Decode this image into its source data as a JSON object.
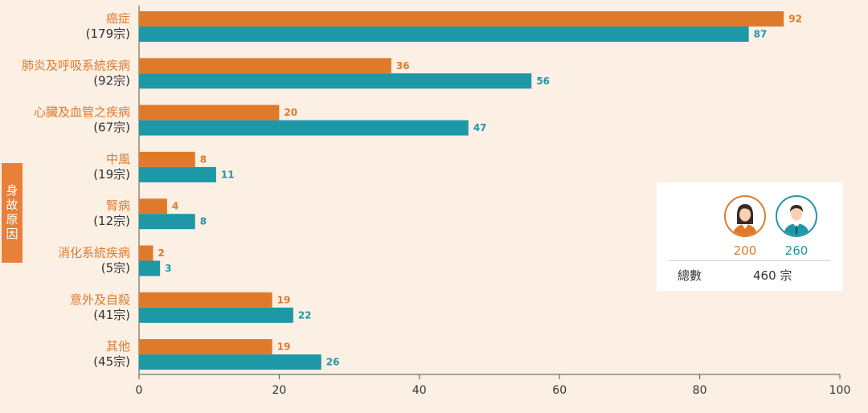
{
  "axis_title": "身故原因",
  "colors": {
    "female": "#e07a2b",
    "male": "#1e97a7",
    "background": "#fcefe4"
  },
  "legend": {
    "female_icon": "female-avatar-icon",
    "male_icon": "male-avatar-icon",
    "female_count": "200",
    "male_count": "260",
    "total_label": "總數",
    "total_value": "460 宗"
  },
  "chart_data": {
    "type": "bar",
    "orientation": "horizontal",
    "categories": [
      "癌症",
      "肺炎及呼吸系統疾病",
      "心臟及血管之疾病",
      "中風",
      "腎病",
      "消化系統疾病",
      "意外及自殺",
      "其他"
    ],
    "category_counts": [
      "(179宗)",
      "(92宗)",
      "(67宗)",
      "(19宗)",
      "(12宗)",
      "(5宗)",
      "(41宗)",
      "(45宗)"
    ],
    "series": [
      {
        "color": "#e07a2b",
        "values": [
          92,
          36,
          20,
          8,
          4,
          2,
          19,
          19
        ]
      },
      {
        "color": "#1e97a7",
        "values": [
          87,
          56,
          47,
          11,
          8,
          3,
          22,
          26
        ]
      }
    ],
    "xlim": [
      0,
      100
    ],
    "xticks": [
      0,
      20,
      40,
      60,
      80,
      100
    ],
    "grid": false,
    "legend_position": "right"
  }
}
